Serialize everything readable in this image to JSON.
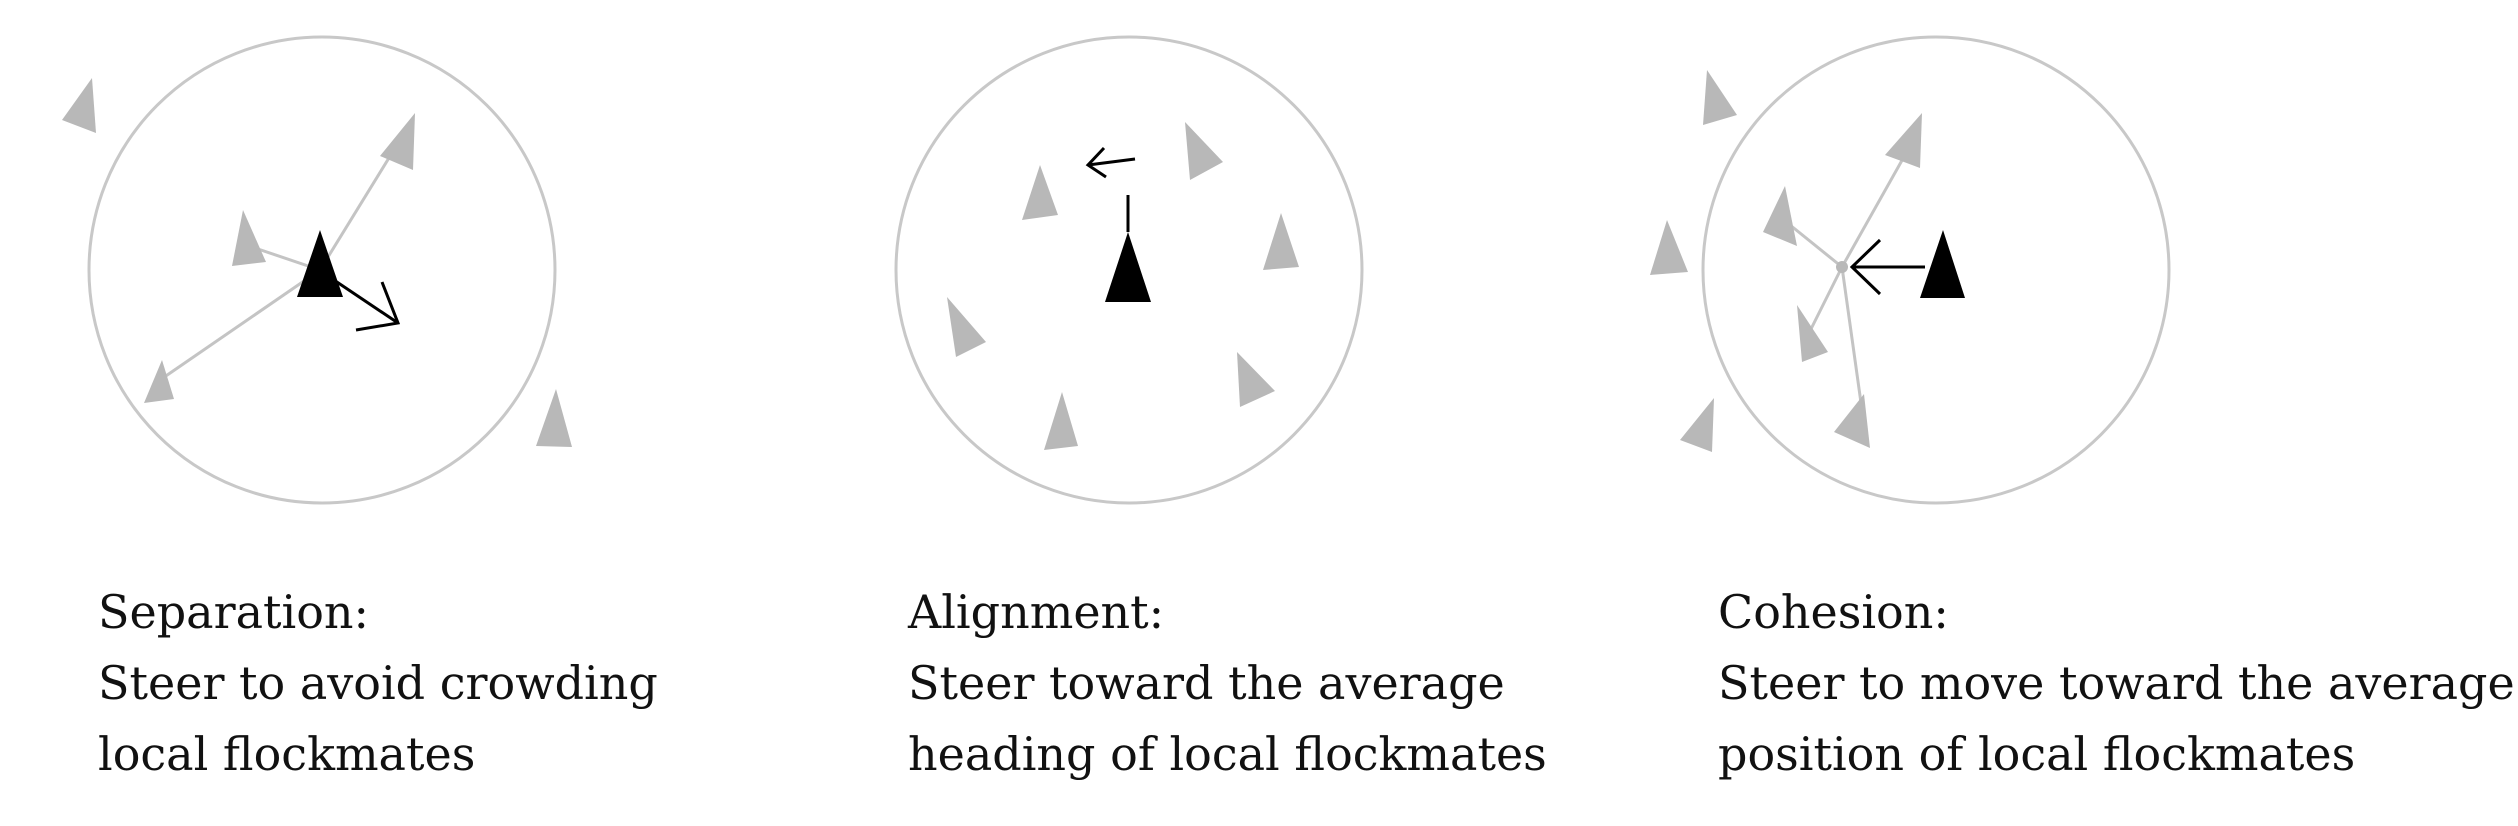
{
  "colors": {
    "neighbor": "#b8b8b8",
    "ring": "#c8c8c8",
    "focal": "#000000",
    "text": "#111111"
  },
  "panels": [
    {
      "id": "separation",
      "title": "Separation:",
      "line1": "Steer to avoid crowding",
      "line2": "local flockmates"
    },
    {
      "id": "alignment",
      "title": "Alignment:",
      "line1": "Steer toward the average",
      "line2": "heading of local flockmates"
    },
    {
      "id": "cohesion",
      "title": "Cohesion:",
      "line1": "Steer to move toward the average",
      "line2": "position of local flockmates"
    }
  ]
}
